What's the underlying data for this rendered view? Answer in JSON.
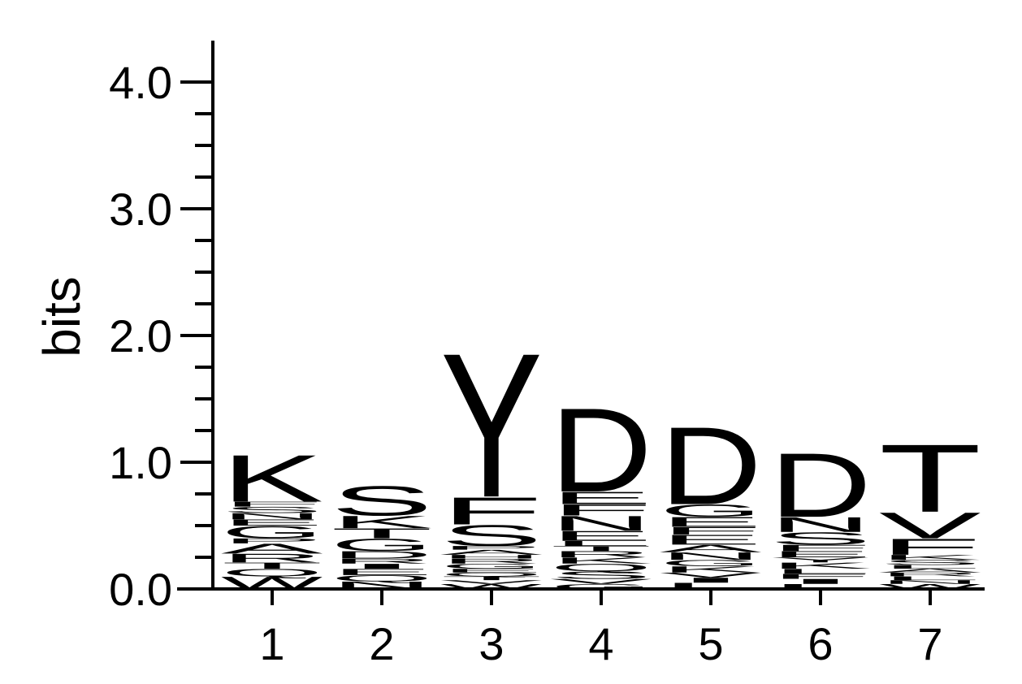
{
  "chart_data": {
    "type": "sequence-logo",
    "ylabel": "bits",
    "ylim": [
      0,
      4.3
    ],
    "yticks": [
      {
        "value": 0,
        "label": "0.0"
      },
      {
        "value": 1,
        "label": "1.0"
      },
      {
        "value": 2,
        "label": "2.0"
      },
      {
        "value": 3,
        "label": "3.0"
      },
      {
        "value": 4,
        "label": "4.0"
      }
    ],
    "positions": [
      {
        "label": "1",
        "letters": [
          {
            "l": "W",
            "h": 0.1
          },
          {
            "l": "Q",
            "h": 0.06
          },
          {
            "l": "T",
            "h": 0.05
          },
          {
            "l": "R",
            "h": 0.07
          },
          {
            "l": "A",
            "h": 0.08
          },
          {
            "l": "P",
            "h": 0.04
          },
          {
            "l": "G",
            "h": 0.1
          },
          {
            "l": "E",
            "h": 0.05
          },
          {
            "l": "N",
            "h": 0.05
          },
          {
            "l": "S",
            "h": 0.05
          },
          {
            "l": "F",
            "h": 0.04
          },
          {
            "l": "K",
            "h": 0.38
          }
        ]
      },
      {
        "label": "2",
        "letters": [
          {
            "l": "N",
            "h": 0.06
          },
          {
            "l": "Q",
            "h": 0.05
          },
          {
            "l": "E",
            "h": 0.05
          },
          {
            "l": "I",
            "h": 0.04
          },
          {
            "l": "R",
            "h": 0.04
          },
          {
            "l": "D",
            "h": 0.06
          },
          {
            "l": "G",
            "h": 0.1
          },
          {
            "l": "T",
            "h": 0.08
          },
          {
            "l": "K",
            "h": 0.1
          },
          {
            "l": "S",
            "h": 0.24
          }
        ]
      },
      {
        "label": "3",
        "letters": [
          {
            "l": "W",
            "h": 0.04
          },
          {
            "l": "V",
            "h": 0.03
          },
          {
            "l": "T",
            "h": 0.03
          },
          {
            "l": "Q",
            "h": 0.03
          },
          {
            "l": "E",
            "h": 0.03
          },
          {
            "l": "G",
            "h": 0.04
          },
          {
            "l": "R",
            "h": 0.04
          },
          {
            "l": "H",
            "h": 0.03
          },
          {
            "l": "A",
            "h": 0.04
          },
          {
            "l": "P",
            "h": 0.03
          },
          {
            "l": "S",
            "h": 0.17
          },
          {
            "l": "F",
            "h": 0.22
          },
          {
            "l": "Y",
            "h": 1.17
          }
        ]
      },
      {
        "label": "4",
        "letters": [
          {
            "l": "G",
            "h": 0.04
          },
          {
            "l": "V",
            "h": 0.04
          },
          {
            "l": "S",
            "h": 0.06
          },
          {
            "l": "Q",
            "h": 0.06
          },
          {
            "l": "K",
            "h": 0.05
          },
          {
            "l": "R",
            "h": 0.05
          },
          {
            "l": "T",
            "h": 0.04
          },
          {
            "l": "L",
            "h": 0.04
          },
          {
            "l": "E",
            "h": 0.08
          },
          {
            "l": "N",
            "h": 0.12
          },
          {
            "l": "F",
            "h": 0.09
          },
          {
            "l": "E",
            "h": 0.1
          },
          {
            "l": "D",
            "h": 0.68
          }
        ]
      },
      {
        "label": "5",
        "letters": [
          {
            "l": "L",
            "h": 0.05
          },
          {
            "l": "I",
            "h": 0.04
          },
          {
            "l": "V",
            "h": 0.04
          },
          {
            "l": "K",
            "h": 0.05
          },
          {
            "l": "G",
            "h": 0.05
          },
          {
            "l": "N",
            "h": 0.06
          },
          {
            "l": "A",
            "h": 0.06
          },
          {
            "l": "E",
            "h": 0.08
          },
          {
            "l": "F",
            "h": 0.06
          },
          {
            "l": "E",
            "h": 0.08
          },
          {
            "l": "G",
            "h": 0.1
          },
          {
            "l": "D",
            "h": 0.63
          }
        ]
      },
      {
        "label": "6",
        "letters": [
          {
            "l": "L",
            "h": 0.04
          },
          {
            "l": "I",
            "h": 0.04
          },
          {
            "l": "F",
            "h": 0.04
          },
          {
            "l": "L",
            "h": 0.04
          },
          {
            "l": "K",
            "h": 0.05
          },
          {
            "l": "Y",
            "h": 0.04
          },
          {
            "l": "E",
            "h": 0.05
          },
          {
            "l": "F",
            "h": 0.05
          },
          {
            "l": "S",
            "h": 0.1
          },
          {
            "l": "N",
            "h": 0.12
          },
          {
            "l": "D",
            "h": 0.52
          }
        ]
      },
      {
        "label": "7",
        "letters": [
          {
            "l": "W",
            "h": 0.04
          },
          {
            "l": "N",
            "h": 0.03
          },
          {
            "l": "L",
            "h": 0.03
          },
          {
            "l": "R",
            "h": 0.03
          },
          {
            "l": "A",
            "h": 0.03
          },
          {
            "l": "L",
            "h": 0.03
          },
          {
            "l": "S",
            "h": 0.04
          },
          {
            "l": "K",
            "h": 0.04
          },
          {
            "l": "F",
            "h": 0.13
          },
          {
            "l": "V",
            "h": 0.21
          },
          {
            "l": "T",
            "h": 0.55
          }
        ]
      }
    ]
  }
}
